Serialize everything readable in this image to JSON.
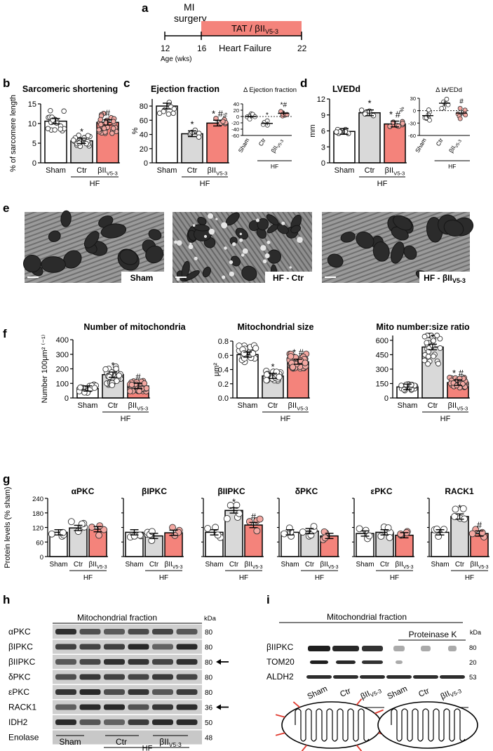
{
  "panel_a": {
    "letter": "a",
    "surgery_label_1": "MI",
    "surgery_label_2": "surgery",
    "treatment_label": "TAT / βII",
    "treatment_sub": "V5-3",
    "condition_label": "Heart Failure",
    "ticks": [
      "12",
      "16",
      "22"
    ],
    "axis_label": "Age (wks)",
    "colors": {
      "treatment_bar": "#f4837b"
    }
  },
  "groups_common": {
    "sham": "Sham",
    "ctr": "Ctr",
    "beta": "βII",
    "beta_sub": "V5-3",
    "hf": "HF"
  },
  "colors": {
    "sham": "#ffffff",
    "ctr": "#d9d9d9",
    "beta": "#f4837b",
    "beta_dot": "#f4a8a2"
  },
  "chart_data": [
    {
      "id": "b",
      "type": "bar",
      "title": "Sarcomeric shortening",
      "ylabel": "% of sarcomere length",
      "ylim": [
        0,
        15
      ],
      "yticks": [
        "0",
        "5",
        "10",
        "15"
      ],
      "categories": [
        "Sham",
        "Ctr",
        "βIIV5-3"
      ],
      "values": [
        10.6,
        5.6,
        10.3
      ],
      "annotations": [
        "",
        "*",
        "#"
      ]
    },
    {
      "id": "c",
      "type": "bar",
      "title": "Ejection fraction",
      "ylabel": "%",
      "ylim": [
        0,
        90
      ],
      "yticks": [
        "0",
        "20",
        "40",
        "60",
        "80"
      ],
      "categories": [
        "Sham",
        "Ctr",
        "βIIV5-3"
      ],
      "values": [
        80,
        41,
        56
      ],
      "annotations": [
        "",
        "*",
        "* #"
      ]
    },
    {
      "id": "c2",
      "type": "scatter",
      "title": "Δ Ejection fraction",
      "ylabel": "%",
      "ylim": [
        -60,
        40
      ],
      "yticks": [
        "-60",
        "-40",
        "-20",
        "0",
        "20",
        "40"
      ],
      "categories": [
        "Sham",
        "Ctr",
        "βIIV5-3"
      ],
      "values": [
        0,
        -22,
        10
      ],
      "annotations": [
        "",
        "*",
        "*#"
      ]
    },
    {
      "id": "d",
      "type": "bar",
      "title": "LVEDd",
      "ylabel": "mm",
      "ylim": [
        0,
        12
      ],
      "yticks": [
        "0",
        "3",
        "6",
        "9",
        "12"
      ],
      "categories": [
        "Sham",
        "Ctr",
        "βIIV5-3"
      ],
      "values": [
        5.9,
        9.4,
        7.3
      ],
      "annotations": [
        "",
        "*",
        "* #"
      ]
    },
    {
      "id": "d2",
      "type": "scatter",
      "title": "Δ LVEDd",
      "ylabel": "%",
      "ylim": [
        -60,
        30
      ],
      "yticks": [
        "-60",
        "-30",
        "0",
        "30"
      ],
      "categories": [
        "Sham",
        "Ctr",
        "βIIV5-3"
      ],
      "values": [
        -12,
        18,
        -6
      ],
      "annotations": [
        "",
        "*",
        "#"
      ]
    },
    {
      "id": "f1",
      "type": "bar",
      "title": "Number of mitochondria",
      "ylabel": "Number 100μm² ⁽⁻¹⁾",
      "ylim": [
        0,
        400
      ],
      "yticks": [
        "0",
        "100",
        "200",
        "300",
        "400"
      ],
      "categories": [
        "Sham",
        "Ctr",
        "βIIV5-3"
      ],
      "values": [
        65,
        160,
        82
      ],
      "annotations": [
        "",
        "*",
        "#"
      ]
    },
    {
      "id": "f2",
      "type": "bar",
      "title": "Mitochondrial size",
      "ylabel": "μm²",
      "ylim": [
        0,
        0.8
      ],
      "yticks": [
        "0.0",
        "0.2",
        "0.4",
        "0.6",
        "0.8"
      ],
      "categories": [
        "Sham",
        "Ctr",
        "βIIV5-3"
      ],
      "values": [
        0.61,
        0.31,
        0.51
      ],
      "annotations": [
        "",
        "*",
        "* #"
      ]
    },
    {
      "id": "f3",
      "type": "bar",
      "title": "Mito number:size ratio",
      "ylabel": "",
      "ylim": [
        0,
        650
      ],
      "yticks": [
        "0",
        "150",
        "300",
        "450",
        "600"
      ],
      "categories": [
        "Sham",
        "Ctr",
        "βIIV5-3"
      ],
      "values": [
        115,
        530,
        160
      ],
      "annotations": [
        "",
        "*",
        "* #"
      ]
    },
    {
      "id": "g1",
      "type": "bar",
      "title": "αPKC",
      "ylabel": "Protein levels (% sham)",
      "ylim": [
        0,
        240
      ],
      "yticks": [
        "0",
        "60",
        "120",
        "180",
        "240"
      ],
      "categories": [
        "Sham",
        "Ctr",
        "βIIV5-3"
      ],
      "values": [
        100,
        118,
        113
      ],
      "annotations": [
        "",
        "",
        ""
      ]
    },
    {
      "id": "g2",
      "type": "bar",
      "title": "βIPKC",
      "ylabel": "",
      "ylim": [
        0,
        240
      ],
      "yticks": [],
      "categories": [
        "Sham",
        "Ctr",
        "βIIV5-3"
      ],
      "values": [
        100,
        85,
        98
      ],
      "annotations": [
        "",
        "",
        ""
      ]
    },
    {
      "id": "g3",
      "type": "bar",
      "title": "βIIPKC",
      "ylabel": "",
      "ylim": [
        0,
        240
      ],
      "yticks": [],
      "categories": [
        "Sham",
        "Ctr",
        "βIIV5-3"
      ],
      "values": [
        100,
        190,
        130
      ],
      "annotations": [
        "",
        "*",
        "#"
      ]
    },
    {
      "id": "g4",
      "type": "bar",
      "title": "δPKC",
      "ylabel": "",
      "ylim": [
        0,
        240
      ],
      "yticks": [],
      "categories": [
        "Sham",
        "Ctr",
        "βIIV5-3"
      ],
      "values": [
        100,
        105,
        85
      ],
      "annotations": [
        "",
        "",
        ""
      ]
    },
    {
      "id": "g5",
      "type": "bar",
      "title": "εPKC",
      "ylabel": "",
      "ylim": [
        0,
        240
      ],
      "yticks": [],
      "categories": [
        "Sham",
        "Ctr",
        "βIIV5-3"
      ],
      "values": [
        95,
        100,
        88
      ],
      "annotations": [
        "",
        "",
        ""
      ]
    },
    {
      "id": "g6",
      "type": "bar",
      "title": "RACK1",
      "ylabel": "",
      "ylim": [
        0,
        240
      ],
      "yticks": [],
      "categories": [
        "Sham",
        "Ctr",
        "βIIV5-3"
      ],
      "values": [
        100,
        165,
        95
      ],
      "annotations": [
        "",
        "*",
        "#"
      ]
    }
  ],
  "panel_letters": {
    "b": "b",
    "c": "c",
    "d": "d",
    "e": "e",
    "f": "f",
    "g": "g",
    "h": "h",
    "i": "i"
  },
  "panel_e": {
    "labels": [
      "Sham",
      "HF - Ctr",
      "HF - βII"
    ],
    "sub": "V5-3"
  },
  "panel_h": {
    "title": "Mitochondrial fraction",
    "kda_header": "kDa",
    "rows": [
      {
        "label": "αPKC",
        "kda": "80",
        "arrow": false
      },
      {
        "label": "βIPKC",
        "kda": "80",
        "arrow": false
      },
      {
        "label": "βIIPKC",
        "kda": "80",
        "arrow": true
      },
      {
        "label": "δPKC",
        "kda": "80",
        "arrow": false
      },
      {
        "label": "εPKC",
        "kda": "80",
        "arrow": false
      },
      {
        "label": "RACK1",
        "kda": "36",
        "arrow": true
      },
      {
        "label": "IDH2",
        "kda": "50",
        "arrow": false
      },
      {
        "label": "Enolase",
        "kda": "48",
        "arrow": false
      }
    ],
    "groups": [
      "Sham",
      "Ctr",
      "βII"
    ],
    "beta_sub": "V5-3",
    "hf": "HF"
  },
  "panel_i": {
    "title": "Mitochondrial fraction",
    "proteinase": "Proteinase K",
    "kda_header": "kDa",
    "rows": [
      {
        "label": "βIIPKC",
        "kda": "80"
      },
      {
        "label": "TOM20",
        "kda": "20"
      },
      {
        "label": "ALDH2",
        "kda": "53"
      }
    ],
    "lanes": [
      "Sham",
      "Ctr",
      "βII",
      "Sham",
      "Ctr",
      "βII"
    ],
    "beta_sub": "V5-3",
    "hf": "HF"
  }
}
